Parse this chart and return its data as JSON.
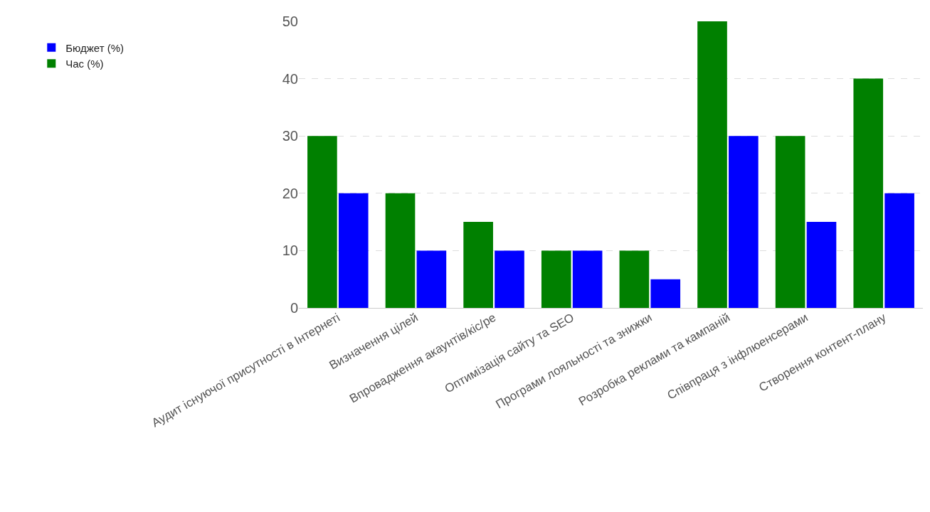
{
  "chart_data": {
    "type": "bar",
    "categories": [
      "Аудит існуючої присутності в Інтернеті",
      "Визначення цілей",
      "Впровадження акаунтів/кіс/ре",
      "Оптимізація сайту та SEO",
      "Програми лояльності та знижки",
      "Розробка реклами та кампаній",
      "Співпраця з інфлюенсерами",
      "Створення контент-плану"
    ],
    "series": [
      {
        "name": "Час (%)",
        "color": "#008000",
        "values": [
          30,
          20,
          15,
          10,
          10,
          50,
          30,
          40
        ]
      },
      {
        "name": "Бюджет (%)",
        "color": "#0000ff",
        "values": [
          20,
          10,
          10,
          10,
          5,
          30,
          15,
          20
        ]
      }
    ],
    "ylim": [
      0,
      50
    ],
    "yticks": [
      0,
      10,
      20,
      30,
      40,
      50
    ],
    "grid": "y",
    "legend": "top left"
  }
}
